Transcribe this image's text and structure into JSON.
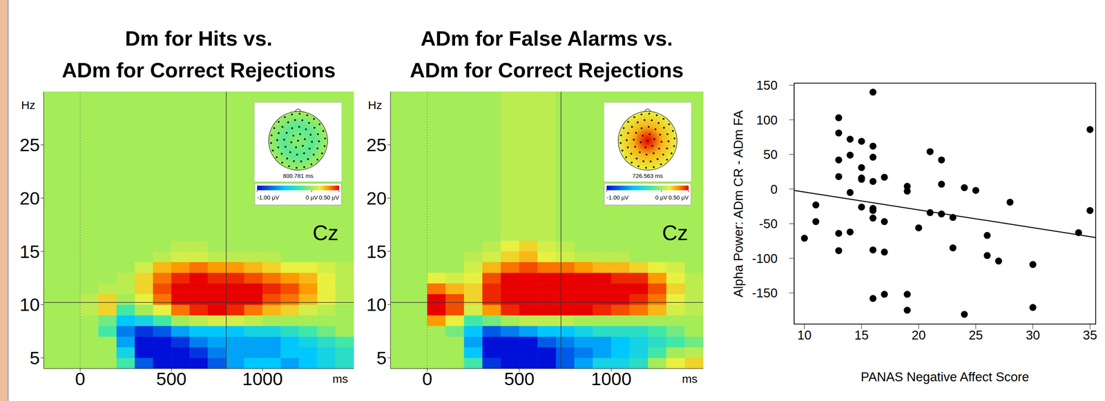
{
  "chart_data": [
    {
      "type": "heatmap",
      "title": "Dm for Hits vs. ADm for Correct Rejections",
      "channel": "Cz",
      "x_label": "ms",
      "y_label": "Hz",
      "xlim": [
        -200,
        1500
      ],
      "ylim": [
        4,
        30
      ],
      "xticks": [
        0,
        500,
        1000
      ],
      "yticks": [
        5,
        10,
        15,
        20,
        25
      ],
      "time_bins": [
        -200,
        -100,
        0,
        100,
        200,
        300,
        400,
        500,
        600,
        700,
        800,
        900,
        1000,
        1100,
        1200,
        1300,
        1400,
        1500
      ],
      "freq_bins": [
        4,
        5,
        6,
        7,
        8,
        9,
        10,
        11,
        12,
        13,
        14,
        15,
        16,
        30
      ],
      "cells": [
        [
          0,
          0,
          0,
          0,
          -0.2,
          -0.8,
          -1,
          -1,
          -1,
          -0.8,
          -0.6,
          -0.5,
          -0.5,
          -0.6,
          -0.5,
          -0.4,
          -0.3
        ],
        [
          0,
          0,
          0,
          0,
          -0.4,
          -1,
          -1,
          -1,
          -0.9,
          -0.7,
          -0.6,
          -0.6,
          -0.6,
          -0.5,
          -0.5,
          -0.4,
          -0.3
        ],
        [
          0,
          0,
          0,
          0,
          -0.6,
          -1,
          -1,
          -0.9,
          -0.7,
          -0.6,
          -0.6,
          -0.6,
          -0.6,
          -0.5,
          -0.4,
          -0.3,
          -0.2
        ],
        [
          0,
          0,
          0,
          -0.2,
          -0.7,
          -0.9,
          -0.8,
          -0.6,
          -0.5,
          -0.5,
          -0.5,
          -0.4,
          -0.4,
          -0.3,
          -0.2,
          -0.1,
          0
        ],
        [
          0,
          0,
          0,
          -0.1,
          -0.5,
          -0.4,
          -0.2,
          0,
          0.1,
          0.2,
          0.2,
          0.1,
          0,
          0,
          0,
          0,
          0
        ],
        [
          0,
          0,
          0.1,
          0.4,
          -0.2,
          0,
          0.3,
          0.7,
          0.9,
          1,
          0.9,
          0.7,
          0.5,
          0.4,
          0.2,
          0.1,
          0
        ],
        [
          0,
          0,
          0.1,
          0.4,
          0,
          0.3,
          0.7,
          1,
          1,
          1,
          1,
          1,
          0.8,
          0.7,
          0.5,
          0.3,
          0.1
        ],
        [
          0,
          0,
          0,
          0.1,
          0.1,
          0.4,
          0.8,
          1,
          1,
          1,
          1,
          1,
          0.9,
          0.8,
          0.6,
          0.3,
          0.1
        ],
        [
          0,
          0,
          0,
          0,
          0.1,
          0.4,
          0.7,
          0.9,
          1,
          0.9,
          0.9,
          0.8,
          0.7,
          0.6,
          0.5,
          0.3,
          0.1
        ],
        [
          0,
          0,
          0,
          0,
          0,
          0.2,
          0.5,
          0.6,
          0.7,
          0.6,
          0.6,
          0.5,
          0.4,
          0.3,
          0.3,
          0.2,
          0.1
        ],
        [
          0,
          0,
          0,
          0,
          0,
          0,
          0.1,
          0.2,
          0.2,
          0.1,
          0.1,
          0.1,
          0.1,
          0,
          0,
          0,
          0
        ],
        [
          0,
          0,
          0,
          0,
          0,
          0,
          0,
          0.1,
          0.1,
          0,
          0,
          0,
          0,
          0,
          0,
          0,
          0
        ],
        [
          0,
          0,
          0,
          0,
          0,
          0,
          0,
          0,
          0,
          0,
          0,
          0,
          0,
          0,
          0,
          0,
          0
        ]
      ],
      "color_range": [
        -1,
        1
      ],
      "onset": 0,
      "cursor": {
        "time": 800.781,
        "frequency": 10.2
      },
      "topomap": {
        "label": "800.781 ms",
        "center": -0.05,
        "middle": -0.15,
        "edge": 0.0,
        "colorbar": {
          "range": [
            -1,
            0.5
          ],
          "ticks": [
            {
              "value": -1,
              "label": "-1.00 µV"
            },
            {
              "value": 0,
              "label": "0 µV"
            },
            {
              "value": 0.5,
              "label": "0.50 µV"
            }
          ]
        }
      }
    },
    {
      "type": "heatmap",
      "title": "ADm for False Alarms vs. ADm for Correct Rejections",
      "channel": "Cz",
      "x_label": "ms",
      "y_label": "Hz",
      "xlim": [
        -200,
        1500
      ],
      "ylim": [
        4,
        30
      ],
      "xticks": [
        0,
        500,
        1000
      ],
      "yticks": [
        5,
        10,
        15,
        20,
        25
      ],
      "time_bins": [
        -200,
        -100,
        0,
        100,
        200,
        300,
        400,
        500,
        600,
        700,
        800,
        900,
        1000,
        1100,
        1200,
        1300,
        1400,
        1500
      ],
      "freq_bins": [
        4,
        5,
        6,
        7,
        8,
        9,
        10,
        11,
        12,
        13,
        14,
        15,
        16,
        30
      ],
      "cells": [
        [
          0,
          0,
          0,
          0,
          -0.2,
          -0.9,
          -1,
          -1,
          -1,
          -0.8,
          -0.6,
          -0.4,
          -0.4,
          -0.3,
          0,
          0.3,
          0.4
        ],
        [
          0,
          0,
          0,
          0,
          -0.5,
          -1,
          -1,
          -1,
          -1,
          -0.8,
          -0.7,
          -0.6,
          -0.5,
          -0.4,
          -0.2,
          0,
          0.1
        ],
        [
          0,
          0,
          0,
          0,
          -0.6,
          -1,
          -1,
          -1,
          -0.8,
          -0.7,
          -0.6,
          -0.6,
          -0.5,
          -0.4,
          -0.3,
          -0.2,
          -0.1
        ],
        [
          0,
          0,
          0,
          -0.1,
          -0.5,
          -0.8,
          -0.7,
          -0.6,
          -0.5,
          -0.5,
          -0.4,
          -0.3,
          -0.3,
          -0.3,
          -0.2,
          -0.1,
          0
        ],
        [
          0,
          0,
          0.6,
          0.3,
          -0.2,
          -0.1,
          0,
          0.1,
          0.1,
          0.1,
          0,
          0,
          0,
          0,
          0,
          0,
          0
        ],
        [
          0,
          0,
          1,
          0.8,
          0.2,
          0.6,
          0.9,
          1,
          1,
          1,
          1,
          0.9,
          0.8,
          0.7,
          0.5,
          0.2,
          0.1
        ],
        [
          0,
          0,
          1,
          0.8,
          0.4,
          0.9,
          1,
          1,
          1,
          1,
          1,
          1,
          1,
          0.9,
          0.7,
          0.3,
          0.1
        ],
        [
          0,
          0,
          0.7,
          0.5,
          0.4,
          0.9,
          1,
          1,
          1,
          1,
          1,
          1,
          1,
          1,
          0.8,
          0.4,
          0.1
        ],
        [
          0,
          0,
          0.3,
          0.2,
          0.3,
          0.8,
          1,
          1,
          1,
          1,
          1,
          1,
          0.9,
          0.9,
          0.6,
          0.3,
          0.1
        ],
        [
          0,
          0,
          0,
          0,
          0.2,
          0.5,
          0.7,
          0.8,
          0.7,
          0.7,
          0.6,
          0.5,
          0.5,
          0.4,
          0.3,
          0.2,
          0
        ],
        [
          0,
          0,
          0,
          0,
          0.1,
          0.2,
          0.4,
          0.5,
          0.3,
          0.2,
          0.1,
          0.1,
          0.1,
          0,
          0,
          0,
          0
        ],
        [
          0,
          0,
          0,
          0,
          0,
          0.1,
          0.3,
          0.4,
          0.2,
          0.1,
          0,
          0,
          0,
          0,
          0,
          0,
          0
        ],
        [
          0,
          0,
          0,
          0,
          0,
          0,
          0.1,
          0.1,
          0.1,
          0,
          0,
          0,
          0,
          0,
          0,
          0,
          0
        ]
      ],
      "color_range": [
        -1,
        1
      ],
      "onset": 0,
      "cursor": {
        "time": 726.563,
        "frequency": 10.2
      },
      "topomap": {
        "label": "726.563 ms",
        "center": 0.5,
        "middle": 0.25,
        "edge": 0.15,
        "colorbar": {
          "range": [
            -1,
            0.5
          ],
          "ticks": [
            {
              "value": -1,
              "label": "-1.00 µV"
            },
            {
              "value": 0,
              "label": "0 µV"
            },
            {
              "value": 0.5,
              "label": "0.50 µV"
            }
          ]
        }
      }
    },
    {
      "type": "scatter",
      "x_label": "PANAS Negative Affect Score",
      "y_label": "Alpha Power: ADm CR - ADm FA",
      "xlim": [
        9.1,
        35.5
      ],
      "ylim": [
        -195,
        153
      ],
      "xticks": [
        10,
        15,
        20,
        25,
        30,
        35
      ],
      "yticks": [
        -150,
        -100,
        -50,
        0,
        50,
        100,
        150
      ],
      "color": "#000000",
      "marker": "circle",
      "x": [
        10,
        11,
        11,
        13,
        13,
        13,
        13,
        13,
        13,
        14,
        14,
        14,
        14,
        15,
        15,
        15,
        15,
        15,
        16,
        16,
        16,
        16,
        16,
        16,
        16,
        16,
        16,
        17,
        17,
        17,
        17,
        19,
        19,
        19,
        19,
        20,
        21,
        21,
        22,
        22,
        22,
        23,
        23,
        24,
        24,
        25,
        26,
        26,
        27,
        28,
        30,
        30,
        34,
        35,
        35
      ],
      "values": [
        -71,
        -23,
        -47,
        103,
        81,
        42,
        18,
        -64,
        -89,
        72,
        49,
        -5,
        -62,
        69,
        31,
        16,
        14,
        -26,
        140,
        62,
        46,
        11,
        -28,
        -31,
        -42,
        -88,
        -158,
        17,
        -47,
        -91,
        -152,
        4,
        -3,
        -152,
        -175,
        -56,
        54,
        -34,
        42,
        7,
        -36,
        -41,
        -85,
        2,
        -181,
        -2,
        -67,
        -96,
        -104,
        -19,
        -109,
        -171,
        -63,
        86,
        -31
      ],
      "regression": {
        "x": [
          9.1,
          35.5
        ],
        "y": [
          -2,
          -70
        ]
      }
    }
  ]
}
